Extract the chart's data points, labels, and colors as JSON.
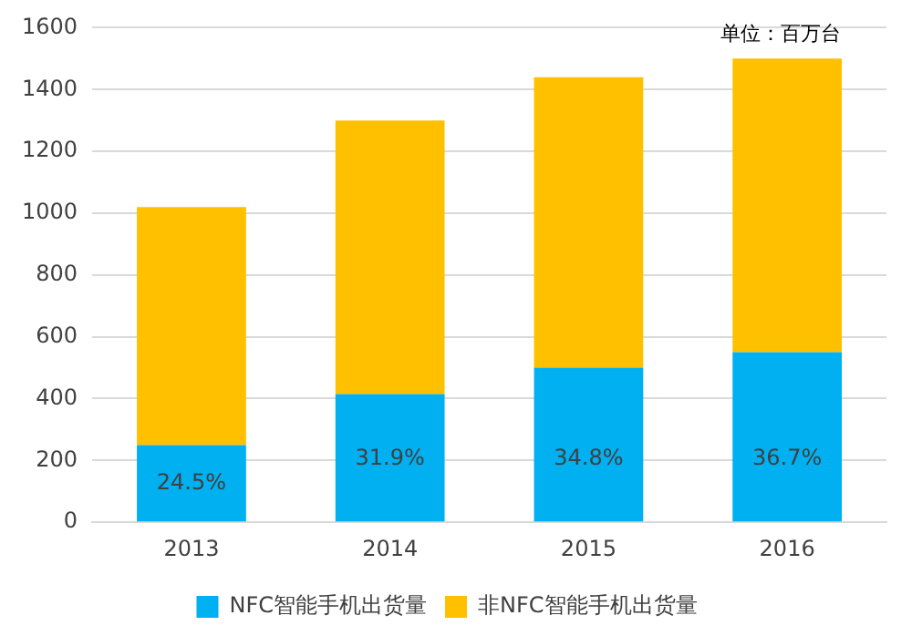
{
  "chart_data": {
    "type": "bar",
    "stacked": true,
    "categories": [
      "2013",
      "2014",
      "2015",
      "2016"
    ],
    "series": [
      {
        "name": "NFC智能手机出货量",
        "color": "#00b0f0",
        "values": [
          250,
          415,
          500,
          550
        ]
      },
      {
        "name": "非NFC智能手机出货量",
        "color": "#ffc000",
        "values": [
          770,
          885,
          940,
          950
        ]
      }
    ],
    "ylim": [
      0,
      1600
    ],
    "yticks": [
      0,
      200,
      400,
      600,
      800,
      1000,
      1200,
      1400,
      1600
    ],
    "grid": "y",
    "legend": "bottom",
    "annotations": [
      "单位：百万台",
      "24.5%",
      "31.9%",
      "34.8%",
      "36.7%"
    ]
  }
}
